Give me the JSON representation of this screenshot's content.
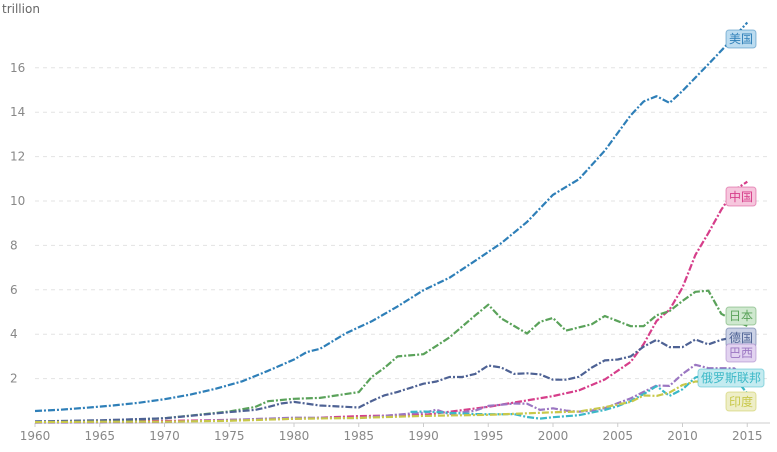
{
  "chart_data": {
    "type": "line",
    "ylabel": "trillion",
    "xlim": [
      1960,
      2016
    ],
    "ylim": [
      0,
      18
    ],
    "x_ticks": [
      1960,
      1965,
      1970,
      1975,
      1980,
      1985,
      1990,
      1995,
      2000,
      2005,
      2010,
      2015
    ],
    "y_ticks": [
      2,
      4,
      6,
      8,
      10,
      12,
      14,
      16
    ],
    "grid": true,
    "series": [
      {
        "name": "美国",
        "color": "#2e7fb8",
        "label_bg": "#bcdcf0",
        "x": [
          1960,
          1962,
          1964,
          1966,
          1968,
          1970,
          1972,
          1974,
          1976,
          1978,
          1980,
          1981,
          1982,
          1984,
          1986,
          1988,
          1990,
          1992,
          1994,
          1996,
          1998,
          2000,
          2002,
          2004,
          2006,
          2007,
          2008,
          2009,
          2010,
          2012,
          2014,
          2015
        ],
        "y": [
          0.54,
          0.6,
          0.69,
          0.79,
          0.91,
          1.07,
          1.28,
          1.55,
          1.88,
          2.35,
          2.86,
          3.2,
          3.34,
          4.04,
          4.58,
          5.25,
          5.98,
          6.54,
          7.31,
          8.1,
          9.06,
          10.28,
          10.98,
          12.27,
          13.86,
          14.48,
          14.72,
          14.42,
          14.96,
          16.16,
          17.39,
          18.04
        ]
      },
      {
        "name": "中国",
        "color": "#d63e8a",
        "label_bg": "#f6c6dd",
        "x": [
          1960,
          1970,
          1980,
          1985,
          1990,
          1995,
          2000,
          2002,
          2004,
          2006,
          2007,
          2008,
          2009,
          2010,
          2011,
          2012,
          2013,
          2014,
          2015
        ],
        "y": [
          0.06,
          0.09,
          0.19,
          0.31,
          0.36,
          0.73,
          1.21,
          1.47,
          1.96,
          2.75,
          3.55,
          4.6,
          5.1,
          6.1,
          7.57,
          8.56,
          9.61,
          10.48,
          10.87
        ]
      },
      {
        "name": "日本",
        "color": "#5aa25a",
        "label_bg": "#cfe8cf",
        "x": [
          1960,
          1965,
          1970,
          1975,
          1977,
          1978,
          1980,
          1982,
          1985,
          1986,
          1987,
          1988,
          1990,
          1992,
          1994,
          1995,
          1996,
          1998,
          1999,
          2000,
          2001,
          2003,
          2004,
          2006,
          2007,
          2008,
          2009,
          2010,
          2011,
          2012,
          2013,
          2014,
          2015
        ],
        "y": [
          0.04,
          0.09,
          0.21,
          0.52,
          0.72,
          0.98,
          1.09,
          1.13,
          1.39,
          2.07,
          2.49,
          3.0,
          3.1,
          3.85,
          4.85,
          5.33,
          4.71,
          4.03,
          4.56,
          4.73,
          4.16,
          4.45,
          4.82,
          4.36,
          4.36,
          4.85,
          5.04,
          5.5,
          5.91,
          5.96,
          4.92,
          4.6,
          4.38
        ]
      },
      {
        "name": "德国",
        "color": "#4e6294",
        "label_bg": "#cbd2e6",
        "x": [
          1960,
          1965,
          1970,
          1975,
          1977,
          1978,
          1979,
          1980,
          1982,
          1985,
          1986,
          1987,
          1988,
          1990,
          1991,
          1992,
          1993,
          1994,
          1995,
          1996,
          1997,
          1998,
          1999,
          2000,
          2001,
          2002,
          2003,
          2004,
          2005,
          2006,
          2007,
          2008,
          2009,
          2010,
          2011,
          2012,
          2013,
          2014,
          2015
        ],
        "y": [
          0.07,
          0.12,
          0.21,
          0.49,
          0.59,
          0.72,
          0.88,
          0.95,
          0.79,
          0.7,
          0.99,
          1.25,
          1.4,
          1.77,
          1.87,
          2.07,
          2.07,
          2.21,
          2.59,
          2.5,
          2.21,
          2.24,
          2.19,
          1.95,
          1.95,
          2.08,
          2.5,
          2.82,
          2.86,
          3.0,
          3.44,
          3.75,
          3.42,
          3.42,
          3.76,
          3.54,
          3.75,
          3.87,
          3.36
        ]
      },
      {
        "name": "巴西",
        "color": "#9b76c2",
        "label_bg": "#e2d3f0",
        "x": [
          1960,
          1970,
          1980,
          1985,
          1989,
          1990,
          1991,
          1992,
          1994,
          1995,
          1997,
          1998,
          1999,
          2000,
          2001,
          2002,
          2003,
          2004,
          2005,
          2006,
          2007,
          2008,
          2009,
          2010,
          2011,
          2012,
          2013,
          2014,
          2015
        ],
        "y": [
          0.02,
          0.04,
          0.24,
          0.22,
          0.43,
          0.46,
          0.6,
          0.4,
          0.56,
          0.77,
          0.88,
          0.87,
          0.59,
          0.66,
          0.56,
          0.51,
          0.56,
          0.67,
          0.89,
          1.11,
          1.4,
          1.69,
          1.67,
          2.21,
          2.62,
          2.47,
          2.47,
          2.46,
          1.8
        ]
      },
      {
        "name": "俄罗斯联邦",
        "color": "#3bb8c7",
        "label_bg": "#c4ebf0",
        "x": [
          1989,
          1990,
          1992,
          1994,
          1996,
          1997,
          1998,
          1999,
          2000,
          2002,
          2004,
          2005,
          2006,
          2007,
          2008,
          2009,
          2010,
          2011,
          2012,
          2013,
          2014,
          2015
        ],
        "y": [
          0.5,
          0.52,
          0.46,
          0.4,
          0.39,
          0.4,
          0.27,
          0.2,
          0.26,
          0.35,
          0.59,
          0.76,
          0.99,
          1.3,
          1.66,
          1.22,
          1.52,
          2.05,
          2.21,
          2.29,
          2.06,
          1.33
        ]
      },
      {
        "name": "印度",
        "color": "#c8c84a",
        "label_bg": "#eeeec8",
        "x": [
          1960,
          1965,
          1970,
          1975,
          1980,
          1985,
          1990,
          1995,
          2000,
          2002,
          2004,
          2006,
          2007,
          2008,
          2009,
          2010,
          2011,
          2012,
          2013,
          2014,
          2015
        ],
        "y": [
          0.04,
          0.06,
          0.06,
          0.1,
          0.19,
          0.23,
          0.32,
          0.37,
          0.48,
          0.52,
          0.71,
          0.95,
          1.24,
          1.22,
          1.37,
          1.71,
          1.87,
          1.86,
          1.86,
          2.04,
          2.1
        ]
      }
    ]
  }
}
